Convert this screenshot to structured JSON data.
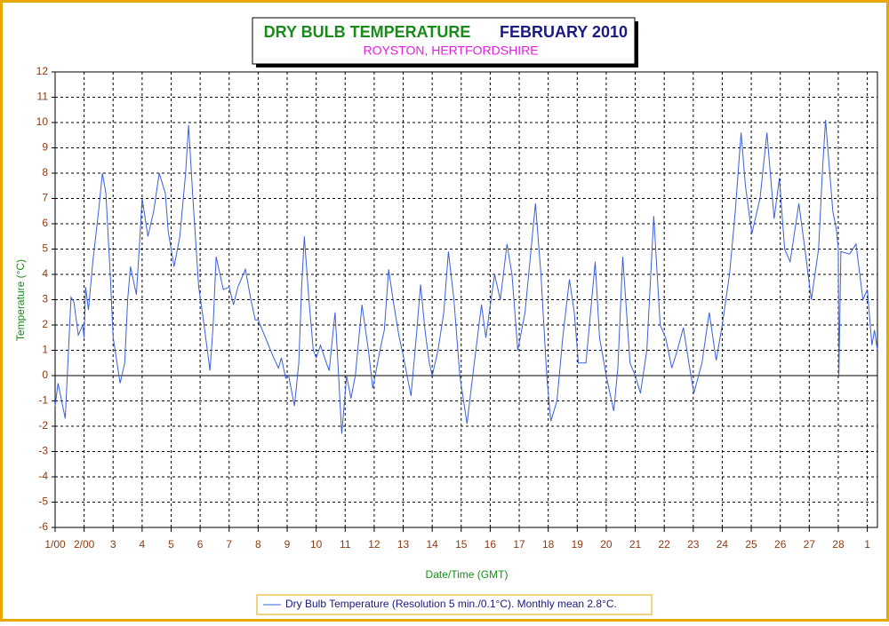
{
  "chart_data": {
    "type": "line",
    "title": "DRY BULB TEMPERATURE",
    "title_period": "FEBRUARY 2010",
    "subtitle": "ROYSTON, HERTFORDSHIRE",
    "xlabel": "Date/Time (GMT)",
    "ylabel": "Temperature (°C)",
    "x": [
      0,
      0.1,
      0.35,
      0.55,
      0.65,
      0.8,
      0.95,
      1.0,
      1.05,
      1.15,
      1.3,
      1.5,
      1.63,
      1.75,
      1.9,
      2.0,
      2.24,
      2.4,
      2.5,
      2.6,
      2.8,
      2.9,
      3.0,
      3.2,
      3.4,
      3.59,
      3.8,
      3.9,
      4.1,
      4.3,
      4.5,
      4.6,
      4.75,
      4.95,
      5.1,
      5.34,
      5.45,
      5.55,
      5.8,
      6.0,
      6.15,
      6.3,
      6.56,
      6.75,
      6.9,
      7.0,
      7.25,
      7.5,
      7.7,
      7.8,
      7.95,
      8.05,
      8.25,
      8.4,
      8.5,
      8.59,
      8.75,
      8.9,
      9.0,
      9.15,
      9.35,
      9.45,
      9.65,
      9.75,
      9.88,
      10.05,
      10.2,
      10.35,
      10.58,
      10.8,
      10.95,
      11.2,
      11.35,
      11.5,
      11.65,
      11.85,
      12.0,
      12.27,
      12.45,
      12.6,
      12.75,
      12.9,
      13.0,
      13.2,
      13.4,
      13.56,
      13.75,
      13.95,
      14.2,
      14.45,
      14.7,
      14.85,
      15.15,
      15.35,
      15.58,
      15.75,
      15.95,
      16.2,
      16.56,
      16.75,
      16.95,
      17.09,
      17.3,
      17.5,
      17.73,
      17.9,
      18.04,
      18.3,
      18.62,
      18.77,
      19.0,
      19.26,
      19.4,
      19.57,
      19.82,
      20.0,
      20.18,
      20.4,
      20.64,
      20.86,
      21.05,
      21.26,
      21.45,
      21.66,
      21.85,
      22.02,
      22.3,
      22.55,
      22.79,
      23.0,
      23.25,
      23.45,
      23.65,
      23.8,
      24.02,
      24.3,
      24.54,
      24.79,
      24.97,
      25.15,
      25.34,
      25.64,
      25.85,
      26.07,
      26.32,
      26.45,
      26.56,
      26.81,
      26.93,
      27.0,
      27.02,
      27.09,
      27.39,
      27.61,
      27.85,
      28.0,
      28.16,
      28.25,
      28.35
    ],
    "series": [
      {
        "name": "Dry Bulb Temperature (Resolution 5 min./0.1°C). Monthly mean 2.8°C.",
        "color": "#3a5fe0",
        "values": [
          -1.2,
          -0.3,
          -1.7,
          3.1,
          2.9,
          1.6,
          2.0,
          1.5,
          3.5,
          2.6,
          4.5,
          6.5,
          8.0,
          7.2,
          4.0,
          1.5,
          -0.3,
          0.5,
          3.0,
          4.3,
          3.2,
          5.0,
          7.0,
          5.5,
          6.5,
          8.0,
          7.2,
          5.7,
          4.3,
          5.5,
          8.0,
          9.9,
          7.0,
          3.5,
          2.3,
          0.2,
          2.0,
          4.7,
          3.4,
          3.5,
          2.8,
          3.5,
          4.2,
          3.0,
          2.2,
          2.2,
          1.5,
          0.8,
          0.3,
          0.7,
          -0.1,
          0.0,
          -1.2,
          0.5,
          3.5,
          5.5,
          3.0,
          1.0,
          0.7,
          1.2,
          0.5,
          0.2,
          2.5,
          0.5,
          -2.3,
          0.0,
          -0.9,
          0.0,
          2.8,
          1.0,
          -0.5,
          1.0,
          1.8,
          4.2,
          3.0,
          1.6,
          0.8,
          -0.8,
          1.5,
          3.6,
          1.8,
          0.5,
          0.0,
          1.0,
          2.5,
          4.9,
          3.0,
          0.0,
          -1.9,
          0.5,
          2.8,
          1.5,
          4.0,
          3.0,
          5.2,
          4.0,
          1.0,
          2.5,
          6.8,
          4.0,
          0.0,
          -1.8,
          -1.0,
          1.5,
          3.8,
          2.5,
          0.5,
          0.5,
          4.5,
          1.5,
          0.0,
          -1.4,
          0.3,
          4.7,
          0.5,
          0.0,
          -0.7,
          1.0,
          6.3,
          2.0,
          1.5,
          0.3,
          1.0,
          1.9,
          0.5,
          -0.7,
          0.5,
          2.5,
          0.6,
          2.0,
          4.0,
          6.5,
          9.6,
          7.5,
          5.6,
          7.0,
          9.6,
          6.2,
          7.8,
          5.0,
          4.5,
          6.8,
          5.0,
          3.0,
          5.0,
          8.0,
          10.1,
          6.5,
          5.8,
          5.0,
          0.0,
          4.9,
          4.8,
          5.2,
          3.0,
          3.4,
          1.2,
          1.8,
          1.0
        ]
      }
    ],
    "xlim": [
      0,
      28.35
    ],
    "xticks": [
      {
        "value": 0,
        "label": "1/00"
      },
      {
        "value": 1,
        "label": "2/00"
      },
      {
        "value": 2,
        "label": "3"
      },
      {
        "value": 3,
        "label": "4"
      },
      {
        "value": 4,
        "label": "5"
      },
      {
        "value": 5,
        "label": "6"
      },
      {
        "value": 6,
        "label": "7"
      },
      {
        "value": 7,
        "label": "8"
      },
      {
        "value": 8,
        "label": "9"
      },
      {
        "value": 9,
        "label": "10"
      },
      {
        "value": 10,
        "label": "11"
      },
      {
        "value": 11,
        "label": "12"
      },
      {
        "value": 12,
        "label": "13"
      },
      {
        "value": 13,
        "label": "14"
      },
      {
        "value": 14,
        "label": "15"
      },
      {
        "value": 15,
        "label": "16"
      },
      {
        "value": 16,
        "label": "17"
      },
      {
        "value": 17,
        "label": "18"
      },
      {
        "value": 18,
        "label": "19"
      },
      {
        "value": 19,
        "label": "20"
      },
      {
        "value": 20,
        "label": "21"
      },
      {
        "value": 21,
        "label": "22"
      },
      {
        "value": 22,
        "label": "23"
      },
      {
        "value": 23,
        "label": "24"
      },
      {
        "value": 24,
        "label": "25"
      },
      {
        "value": 25,
        "label": "26"
      },
      {
        "value": 26,
        "label": "27"
      },
      {
        "value": 27,
        "label": "28"
      },
      {
        "value": 28,
        "label": "1"
      }
    ],
    "ylim": [
      -6,
      12
    ],
    "yticks": [
      -6,
      -5,
      -4,
      -3,
      -2,
      -1,
      0,
      1,
      2,
      3,
      4,
      5,
      6,
      7,
      8,
      9,
      10,
      11,
      12
    ],
    "grid": true
  }
}
